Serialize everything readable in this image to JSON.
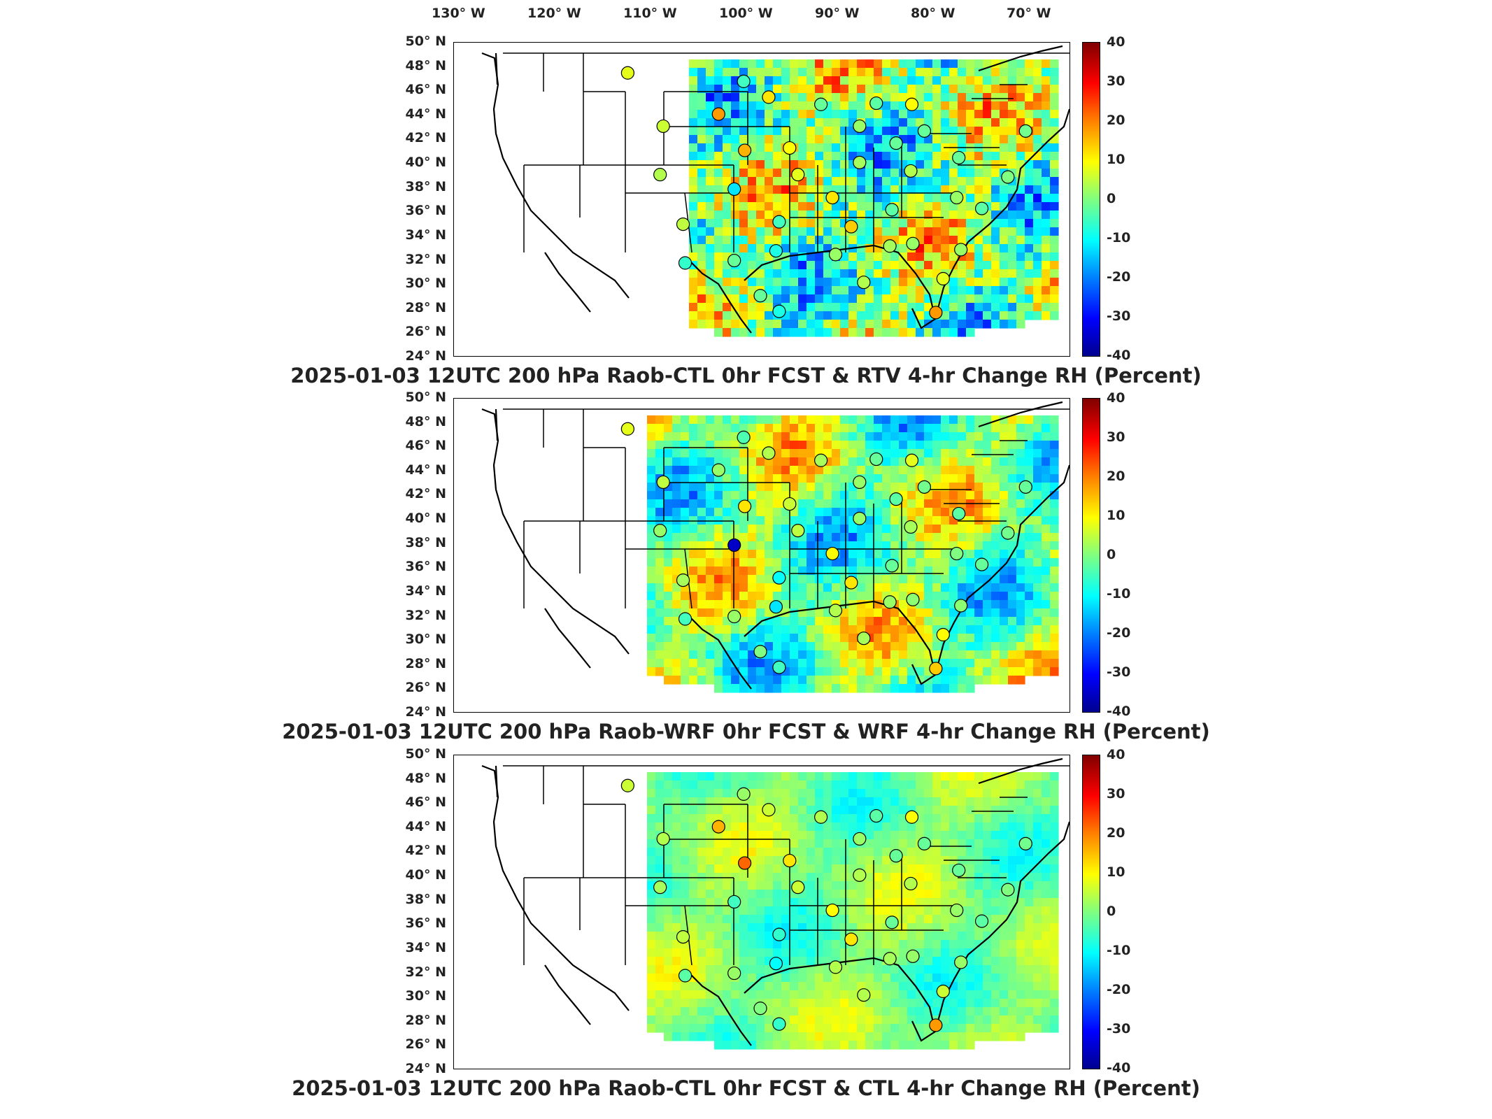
{
  "longitude_labels": [
    "130° W",
    "120° W",
    "110° W",
    "100° W",
    "90° W",
    "80° W",
    "70° W"
  ],
  "latitude_labels": [
    "50° N",
    "48° N",
    "46° N",
    "44° N",
    "42° N",
    "40° N",
    "38° N",
    "36° N",
    "34° N",
    "32° N",
    "30° N",
    "28° N",
    "26° N",
    "24° N"
  ],
  "colorbar": {
    "ticks": [
      "40",
      "30",
      "20",
      "10",
      "0",
      "-10",
      "-20",
      "-30",
      "-40"
    ],
    "min": -40,
    "max": 40,
    "colormap": [
      "#00008f",
      "#0000ff",
      "#0080ff",
      "#00ffff",
      "#80ff80",
      "#ffff00",
      "#ff8000",
      "#ff0000",
      "#800000"
    ]
  },
  "panels": [
    {
      "title": "2025-01-03 12UTC 200 hPa Raob-CTL 0hr FCST & RTV 4-hr Change RH (Percent)",
      "field_style": "noisy-mixed"
    },
    {
      "title": "2025-01-03 12UTC 200 hPa Raob-WRF 0hr FCST & WRF 4-hr Change RH (Percent)",
      "field_style": "mixed"
    },
    {
      "title": "2025-01-03 12UTC 200 hPa Raob-CTL 0hr FCST & CTL 4-hr Change RH (Percent)",
      "field_style": "smooth-green"
    }
  ],
  "stations": [
    {
      "lon": -111.9,
      "lat": 47.5,
      "v": [
        8,
        8,
        6
      ]
    },
    {
      "lon": -108.5,
      "lat": 43.1,
      "v": [
        6,
        5,
        4
      ]
    },
    {
      "lon": -108.8,
      "lat": 39.1,
      "v": [
        4,
        2,
        3
      ]
    },
    {
      "lon": -106.6,
      "lat": 35.0,
      "v": [
        5,
        3,
        5
      ]
    },
    {
      "lon": -106.4,
      "lat": 31.8,
      "v": [
        -6,
        -5,
        -3
      ]
    },
    {
      "lon": -100.8,
      "lat": 46.8,
      "v": [
        -5,
        -4,
        2
      ]
    },
    {
      "lon": -98.4,
      "lat": 45.5,
      "v": [
        12,
        4,
        6
      ]
    },
    {
      "lon": -103.2,
      "lat": 44.1,
      "v": [
        18,
        2,
        16
      ]
    },
    {
      "lon": -100.7,
      "lat": 41.1,
      "v": [
        16,
        12,
        22
      ]
    },
    {
      "lon": -96.4,
      "lat": 41.3,
      "v": [
        10,
        6,
        12
      ]
    },
    {
      "lon": -93.4,
      "lat": 44.9,
      "v": [
        -2,
        3,
        4
      ]
    },
    {
      "lon": -101.7,
      "lat": 37.9,
      "v": [
        -12,
        -35,
        -5
      ]
    },
    {
      "lon": -95.6,
      "lat": 39.1,
      "v": [
        8,
        5,
        6
      ]
    },
    {
      "lon": -97.4,
      "lat": 35.2,
      "v": [
        -5,
        -10,
        -6
      ]
    },
    {
      "lon": -101.7,
      "lat": 32.0,
      "v": [
        -2,
        2,
        2
      ]
    },
    {
      "lon": -97.7,
      "lat": 32.8,
      "v": [
        -8,
        -12,
        -10
      ]
    },
    {
      "lon": -92.3,
      "lat": 37.2,
      "v": [
        12,
        10,
        10
      ]
    },
    {
      "lon": -90.5,
      "lat": 34.8,
      "v": [
        14,
        12,
        12
      ]
    },
    {
      "lon": -92.0,
      "lat": 32.5,
      "v": [
        2,
        4,
        4
      ]
    },
    {
      "lon": -97.4,
      "lat": 27.8,
      "v": [
        -8,
        -5,
        -6
      ]
    },
    {
      "lon": -99.2,
      "lat": 29.1,
      "v": [
        -2,
        0,
        0
      ]
    },
    {
      "lon": -89.3,
      "lat": 30.2,
      "v": [
        4,
        3,
        4
      ]
    },
    {
      "lon": -89.7,
      "lat": 40.1,
      "v": [
        3,
        2,
        4
      ]
    },
    {
      "lon": -89.7,
      "lat": 43.1,
      "v": [
        2,
        2,
        2
      ]
    },
    {
      "lon": -86.2,
      "lat": 41.7,
      "v": [
        -2,
        -3,
        -2
      ]
    },
    {
      "lon": -88.1,
      "lat": 45.0,
      "v": [
        -3,
        -2,
        -3
      ]
    },
    {
      "lon": -84.7,
      "lat": 44.9,
      "v": [
        10,
        8,
        10
      ]
    },
    {
      "lon": -84.8,
      "lat": 39.4,
      "v": [
        4,
        3,
        4
      ]
    },
    {
      "lon": -86.6,
      "lat": 36.2,
      "v": [
        -3,
        -2,
        -2
      ]
    },
    {
      "lon": -86.8,
      "lat": 33.2,
      "v": [
        3,
        2,
        3
      ]
    },
    {
      "lon": -84.6,
      "lat": 33.4,
      "v": [
        2,
        1,
        2
      ]
    },
    {
      "lon": -83.5,
      "lat": 42.7,
      "v": [
        -2,
        -1,
        -2
      ]
    },
    {
      "lon": -80.2,
      "lat": 40.5,
      "v": [
        -2,
        -3,
        -2
      ]
    },
    {
      "lon": -80.4,
      "lat": 37.2,
      "v": [
        2,
        0,
        2
      ]
    },
    {
      "lon": -78.0,
      "lat": 36.3,
      "v": [
        -3,
        -2,
        -3
      ]
    },
    {
      "lon": -80.0,
      "lat": 32.9,
      "v": [
        2,
        1,
        2
      ]
    },
    {
      "lon": -81.7,
      "lat": 30.5,
      "v": [
        8,
        10,
        6
      ]
    },
    {
      "lon": -82.4,
      "lat": 27.7,
      "v": [
        18,
        14,
        18
      ]
    },
    {
      "lon": -73.8,
      "lat": 42.7,
      "v": [
        -1,
        -2,
        -1
      ]
    },
    {
      "lon": -75.5,
      "lat": 38.9,
      "v": [
        0,
        -1,
        0
      ]
    }
  ]
}
